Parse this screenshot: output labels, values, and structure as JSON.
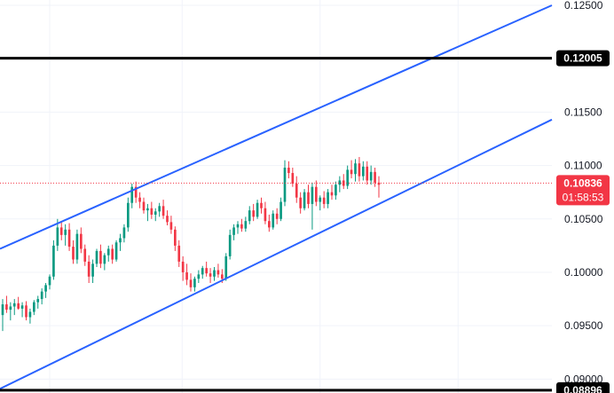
{
  "chart_data": {
    "type": "candlestick",
    "title": "",
    "xlabel": "",
    "ylabel": "",
    "ylim": [
      0.0887,
      0.1255
    ],
    "grid": true,
    "y_ticks": [
      {
        "value": 0.125,
        "label": "0.12500"
      },
      {
        "value": 0.115,
        "label": "0.11500"
      },
      {
        "value": 0.11,
        "label": "0.11000"
      },
      {
        "value": 0.105,
        "label": "0.10500"
      },
      {
        "value": 0.1,
        "label": "0.10000"
      },
      {
        "value": 0.095,
        "label": "0.09500"
      },
      {
        "value": 0.09,
        "label": "0.09000"
      }
    ],
    "horizontal_levels": [
      {
        "value": 0.12005,
        "label": "0.12005",
        "color": "#000000"
      },
      {
        "value": 0.08896,
        "label": "0.08896",
        "color": "#000000"
      }
    ],
    "current_price": {
      "value": 0.10836,
      "label": "0.10836",
      "countdown": "01:58:53",
      "color": "#f23645"
    },
    "channel_lines": [
      {
        "name": "upper",
        "color": "#2962ff",
        "points": [
          [
            0,
            0.1022
          ],
          [
            100,
            0.125
          ]
        ]
      },
      {
        "name": "lower",
        "color": "#2962ff",
        "points": [
          [
            0,
            0.0891
          ],
          [
            100,
            0.1143
          ]
        ]
      }
    ],
    "colors": {
      "up": "#089981",
      "down": "#f23645"
    },
    "candles": [
      [
        0.096,
        0.0975,
        0.0945,
        0.097
      ],
      [
        0.097,
        0.0978,
        0.0962,
        0.0965
      ],
      [
        0.0965,
        0.0972,
        0.0955,
        0.0968
      ],
      [
        0.0968,
        0.0975,
        0.096,
        0.0971
      ],
      [
        0.0971,
        0.0977,
        0.0965,
        0.0966
      ],
      [
        0.0966,
        0.0972,
        0.0958,
        0.0969
      ],
      [
        0.0969,
        0.0973,
        0.0955,
        0.0958
      ],
      [
        0.0958,
        0.0966,
        0.0952,
        0.0963
      ],
      [
        0.0963,
        0.0974,
        0.096,
        0.0972
      ],
      [
        0.0972,
        0.0978,
        0.0966,
        0.0975
      ],
      [
        0.0975,
        0.0985,
        0.097,
        0.0982
      ],
      [
        0.0982,
        0.099,
        0.0976,
        0.0988
      ],
      [
        0.0988,
        0.0998,
        0.0984,
        0.0996
      ],
      [
        0.0996,
        0.103,
        0.0993,
        0.1025
      ],
      [
        0.1025,
        0.105,
        0.102,
        0.1042
      ],
      [
        0.1042,
        0.1048,
        0.103,
        0.1035
      ],
      [
        0.1035,
        0.1045,
        0.1025,
        0.104
      ],
      [
        0.104,
        0.1046,
        0.102,
        0.1024
      ],
      [
        0.1024,
        0.103,
        0.1008,
        0.1012
      ],
      [
        0.1012,
        0.104,
        0.1008,
        0.1036
      ],
      [
        0.1036,
        0.1042,
        0.1018,
        0.1022
      ],
      [
        0.1022,
        0.1026,
        0.1006,
        0.101
      ],
      [
        0.101,
        0.1016,
        0.099,
        0.0996
      ],
      [
        0.0996,
        0.1012,
        0.099,
        0.1008
      ],
      [
        0.1008,
        0.1022,
        0.1005,
        0.102
      ],
      [
        0.102,
        0.1026,
        0.1004,
        0.1008
      ],
      [
        0.1008,
        0.1018,
        0.1002,
        0.1016
      ],
      [
        0.1016,
        0.1025,
        0.101,
        0.1022
      ],
      [
        0.1022,
        0.1026,
        0.1008,
        0.1012
      ],
      [
        0.1012,
        0.103,
        0.101,
        0.1028
      ],
      [
        0.1028,
        0.1036,
        0.102,
        0.1032
      ],
      [
        0.1032,
        0.1045,
        0.1028,
        0.1042
      ],
      [
        0.1042,
        0.107,
        0.1038,
        0.1065
      ],
      [
        0.1065,
        0.1083,
        0.106,
        0.108
      ],
      [
        0.108,
        0.1085,
        0.1065,
        0.107
      ],
      [
        0.107,
        0.1075,
        0.106,
        0.1066
      ],
      [
        0.1066,
        0.107,
        0.1055,
        0.1058
      ],
      [
        0.1058,
        0.1064,
        0.1048,
        0.106
      ],
      [
        0.106,
        0.1066,
        0.105,
        0.1054
      ],
      [
        0.1054,
        0.106,
        0.1048,
        0.1057
      ],
      [
        0.1057,
        0.1065,
        0.1052,
        0.1062
      ],
      [
        0.1062,
        0.1068,
        0.105,
        0.1053
      ],
      [
        0.1053,
        0.1058,
        0.1044,
        0.1047
      ],
      [
        0.1047,
        0.1053,
        0.1036,
        0.104
      ],
      [
        0.104,
        0.1043,
        0.102,
        0.1025
      ],
      [
        0.1025,
        0.103,
        0.1005,
        0.101
      ],
      [
        0.101,
        0.1015,
        0.0992,
        0.1
      ],
      [
        0.1,
        0.1008,
        0.0988,
        0.0993
      ],
      [
        0.0993,
        0.0999,
        0.0982,
        0.0986
      ],
      [
        0.0986,
        0.0996,
        0.0982,
        0.0994
      ],
      [
        0.0994,
        0.1002,
        0.099,
        0.0998
      ],
      [
        0.0998,
        0.1006,
        0.0994,
        0.1004
      ],
      [
        0.1004,
        0.101,
        0.0996,
        0.0999
      ],
      [
        0.0999,
        0.1004,
        0.099,
        0.0996
      ],
      [
        0.0996,
        0.1005,
        0.0992,
        0.1002
      ],
      [
        0.1002,
        0.1008,
        0.0995,
        0.0998
      ],
      [
        0.0998,
        0.1003,
        0.099,
        0.0994
      ],
      [
        0.0994,
        0.1018,
        0.0992,
        0.1015
      ],
      [
        0.1015,
        0.104,
        0.1012,
        0.1035
      ],
      [
        0.1035,
        0.1045,
        0.103,
        0.1042
      ],
      [
        0.1042,
        0.1048,
        0.1036,
        0.1045
      ],
      [
        0.1045,
        0.105,
        0.1038,
        0.1041
      ],
      [
        0.1041,
        0.1052,
        0.1038,
        0.1048
      ],
      [
        0.1048,
        0.1062,
        0.1045,
        0.1058
      ],
      [
        0.1058,
        0.1064,
        0.1048,
        0.1052
      ],
      [
        0.1052,
        0.1068,
        0.105,
        0.1065
      ],
      [
        0.1065,
        0.107,
        0.1055,
        0.106
      ],
      [
        0.106,
        0.1066,
        0.1045,
        0.1048
      ],
      [
        0.1048,
        0.1054,
        0.1038,
        0.1042
      ],
      [
        0.1042,
        0.1058,
        0.104,
        0.1055
      ],
      [
        0.1055,
        0.106,
        0.1045,
        0.105
      ],
      [
        0.105,
        0.107,
        0.1048,
        0.1066
      ],
      [
        0.1066,
        0.1105,
        0.1062,
        0.1098
      ],
      [
        0.1098,
        0.1104,
        0.1088,
        0.1093
      ],
      [
        0.1093,
        0.1098,
        0.108,
        0.1083
      ],
      [
        0.1083,
        0.109,
        0.1065,
        0.107
      ],
      [
        0.107,
        0.1075,
        0.1055,
        0.106
      ],
      [
        0.106,
        0.1078,
        0.1058,
        0.1075
      ],
      [
        0.1075,
        0.1082,
        0.106,
        0.1064
      ],
      [
        0.1064,
        0.1084,
        0.104,
        0.108
      ],
      [
        0.108,
        0.1086,
        0.1062,
        0.1066
      ],
      [
        0.1066,
        0.1072,
        0.1058,
        0.107
      ],
      [
        0.107,
        0.1076,
        0.106,
        0.1064
      ],
      [
        0.1064,
        0.1078,
        0.106,
        0.1075
      ],
      [
        0.1075,
        0.1082,
        0.1068,
        0.1072
      ],
      [
        0.1072,
        0.1085,
        0.1068,
        0.1082
      ],
      [
        0.1082,
        0.109,
        0.1075,
        0.1086
      ],
      [
        0.1086,
        0.1092,
        0.1078,
        0.1081
      ],
      [
        0.1081,
        0.11,
        0.1078,
        0.1096
      ],
      [
        0.1096,
        0.1105,
        0.1088,
        0.1092
      ],
      [
        0.1092,
        0.1106,
        0.1085,
        0.1102
      ],
      [
        0.1102,
        0.1108,
        0.1085,
        0.109
      ],
      [
        0.109,
        0.1104,
        0.1086,
        0.1099
      ],
      [
        0.1099,
        0.1104,
        0.1082,
        0.1086
      ],
      [
        0.1086,
        0.11,
        0.1082,
        0.1094
      ],
      [
        0.1094,
        0.1098,
        0.108,
        0.1084
      ],
      [
        0.1084,
        0.109,
        0.107,
        0.1082
      ]
    ]
  }
}
